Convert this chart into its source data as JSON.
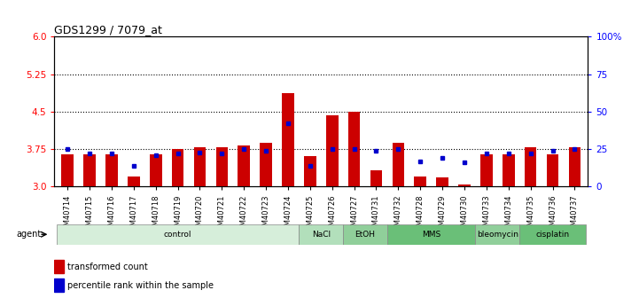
{
  "title": "GDS1299 / 7079_at",
  "samples": [
    "GSM40714",
    "GSM40715",
    "GSM40716",
    "GSM40717",
    "GSM40718",
    "GSM40719",
    "GSM40720",
    "GSM40721",
    "GSM40722",
    "GSM40723",
    "GSM40724",
    "GSM40725",
    "GSM40726",
    "GSM40727",
    "GSM40731",
    "GSM40732",
    "GSM40728",
    "GSM40729",
    "GSM40730",
    "GSM40733",
    "GSM40734",
    "GSM40735",
    "GSM40736",
    "GSM40737"
  ],
  "red_values": [
    3.65,
    3.65,
    3.65,
    3.2,
    3.65,
    3.75,
    3.78,
    3.78,
    3.82,
    3.88,
    4.88,
    3.62,
    4.42,
    4.5,
    3.32,
    3.88,
    3.2,
    3.18,
    3.05,
    3.65,
    3.65,
    3.78,
    3.65,
    3.78
  ],
  "blue_values": [
    25,
    22,
    22,
    14,
    21,
    22,
    23,
    22,
    25,
    24,
    42,
    14,
    25,
    25,
    24,
    25,
    17,
    19,
    16,
    22,
    22,
    22,
    24,
    25
  ],
  "agents": [
    {
      "label": "control",
      "start": 0,
      "end": 11,
      "color": "#d6eeda"
    },
    {
      "label": "NaCl",
      "start": 11,
      "end": 13,
      "color": "#b2dfbb"
    },
    {
      "label": "EtOH",
      "start": 13,
      "end": 15,
      "color": "#90cf9a"
    },
    {
      "label": "MMS",
      "start": 15,
      "end": 19,
      "color": "#6abf78"
    },
    {
      "label": "bleomycin",
      "start": 19,
      "end": 21,
      "color": "#90cf9a"
    },
    {
      "label": "cisplatin",
      "start": 21,
      "end": 24,
      "color": "#6abf78"
    }
  ],
  "ylim_left": [
    3.0,
    6.0
  ],
  "ylim_right": [
    0,
    100
  ],
  "yticks_left": [
    3.0,
    3.75,
    4.5,
    5.25,
    6.0
  ],
  "yticks_right": [
    0,
    25,
    50,
    75,
    100
  ],
  "ytick_labels_right": [
    "0",
    "25",
    "50",
    "75",
    "100%"
  ],
  "hlines": [
    3.75,
    4.5,
    5.25
  ],
  "bar_color": "#cc0000",
  "blue_color": "#0000cc",
  "bar_width": 0.55,
  "background_color": "#ffffff"
}
